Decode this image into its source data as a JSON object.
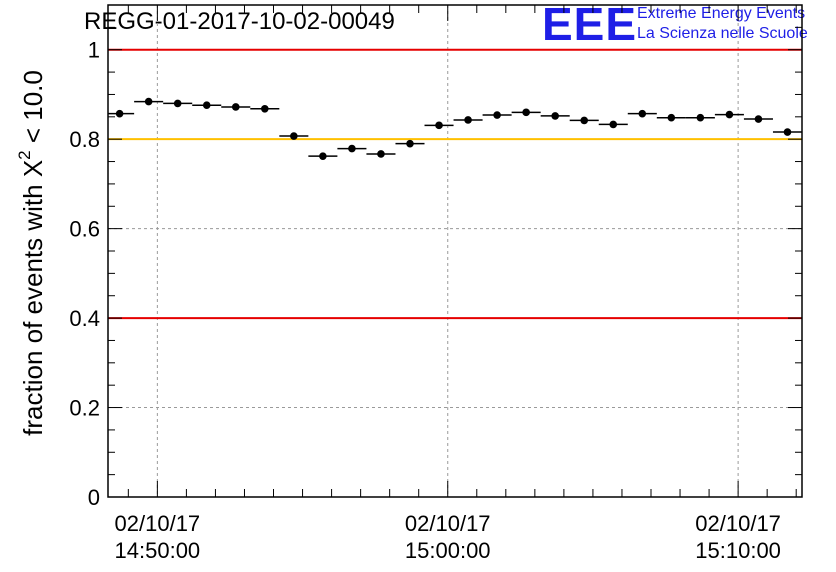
{
  "header": {
    "title": "REGG-01-2017-10-02-00049"
  },
  "logo": {
    "mark": "EEE",
    "line1": "Extreme Energy Events",
    "line2": "La Scienza nelle Scuole"
  },
  "chart_data": {
    "type": "scatter",
    "title": "REGG-01-2017-10-02-00049",
    "ylabel_prefix": "fraction of events with ",
    "ylabel_symbol": "X",
    "ylabel_exponent": "2",
    "ylabel_suffix": " < 10.0",
    "ylim": [
      0,
      1.1
    ],
    "xlim_minutes": [
      -1.7,
      22.2
    ],
    "y_ticks": [
      {
        "value": 0,
        "label": "0"
      },
      {
        "value": 0.2,
        "label": "0.2"
      },
      {
        "value": 0.4,
        "label": "0.4"
      },
      {
        "value": 0.6,
        "label": "0.6"
      },
      {
        "value": 0.8,
        "label": "0.8"
      },
      {
        "value": 1,
        "label": "1"
      }
    ],
    "x_ticks": [
      {
        "minute": 0,
        "date": "02/10/17",
        "time": "14:50:00"
      },
      {
        "minute": 10,
        "date": "02/10/17",
        "time": "15:00:00"
      },
      {
        "minute": 20,
        "date": "02/10/17",
        "time": "15:10:00"
      }
    ],
    "x_minor_minutes": [
      -1,
      1,
      2,
      3,
      4,
      5,
      6,
      7,
      8,
      9,
      11,
      12,
      13,
      14,
      15,
      16,
      17,
      18,
      19,
      21,
      22
    ],
    "grid": true,
    "bin_width_minutes": 1,
    "reference_lines": [
      {
        "value": 1.0,
        "color": "#e60000"
      },
      {
        "value": 0.8,
        "color": "#ffc000"
      },
      {
        "value": 0.4,
        "color": "#e60000"
      }
    ],
    "series": [
      {
        "x_minutes": [
          -1.3,
          -0.3,
          0.7,
          1.7,
          2.7,
          3.7,
          4.7,
          5.7,
          6.7,
          7.7,
          8.7,
          9.7,
          10.7,
          11.7,
          12.7,
          13.7,
          14.7,
          15.7,
          16.7,
          17.7,
          18.7,
          19.7,
          20.7,
          21.7
        ],
        "y": [
          0.857,
          0.884,
          0.88,
          0.876,
          0.872,
          0.868,
          0.807,
          0.762,
          0.779,
          0.767,
          0.79,
          0.831,
          0.843,
          0.854,
          0.86,
          0.852,
          0.842,
          0.833,
          0.857,
          0.848,
          0.848,
          0.855,
          0.845,
          0.816
        ]
      }
    ]
  }
}
